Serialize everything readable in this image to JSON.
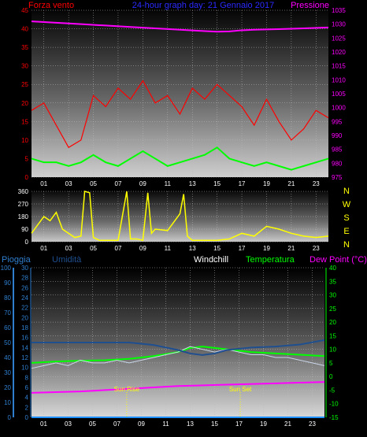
{
  "header": {
    "left": "Forza vento",
    "center": "24-hour graph day: 21 Gennaio 2017",
    "right": "Pressione"
  },
  "colors": {
    "wind": "#ff0000",
    "pressure": "#ff00ff",
    "wind_low": "#00ff00",
    "direction": "#ffff00",
    "humidity_axis": "#2f7fcf",
    "windchill": "#ffffff",
    "temperature": "#00ff00",
    "dew_point": "#ff00ff",
    "rain": "#1e90ff",
    "humidity_line": "#1f4f8f"
  },
  "chart_data": [
    {
      "type": "line",
      "panel": "wind-pressure",
      "x_ticks": [
        "01",
        "03",
        "05",
        "07",
        "09",
        "11",
        "13",
        "15",
        "17",
        "19",
        "21",
        "23"
      ],
      "left_axis": {
        "label": "Forza vento",
        "ticks": [
          0,
          5,
          10,
          15,
          20,
          25,
          30,
          35,
          40,
          45
        ],
        "range": [
          0,
          45
        ]
      },
      "right_axis": {
        "label": "Pressione",
        "ticks": [
          975,
          980,
          985,
          990,
          995,
          1000,
          1005,
          1010,
          1015,
          1020,
          1025,
          1030,
          1035
        ],
        "range": [
          975,
          1035
        ]
      },
      "grid": true,
      "series": [
        {
          "name": "Pressione",
          "axis": "right",
          "x": [
            0,
            2,
            4,
            6,
            8,
            10,
            12,
            14,
            15,
            16,
            17,
            18,
            20,
            22,
            24
          ],
          "y": [
            1031,
            1030.5,
            1030,
            1029.5,
            1029,
            1028.5,
            1028,
            1027.5,
            1027.3,
            1027.4,
            1027.8,
            1028,
            1028.2,
            1028.5,
            1028.8
          ]
        },
        {
          "axis": "left",
          "x": [
            0,
            1,
            2,
            3,
            4,
            5,
            6,
            7,
            8,
            9,
            10,
            11,
            12,
            13,
            14,
            15,
            16,
            17,
            18,
            19,
            20,
            21,
            22,
            23,
            24
          ],
          "y": [
            18,
            20,
            14,
            8,
            10,
            22,
            19,
            24,
            21,
            26,
            20,
            22,
            17,
            24,
            21,
            25,
            22,
            19,
            14,
            21,
            15,
            10,
            13,
            18,
            16
          ]
        },
        {
          "axis": "left",
          "x": [
            0,
            1,
            2,
            3,
            4,
            5,
            6,
            7,
            8,
            9,
            10,
            11,
            12,
            13,
            14,
            15,
            16,
            17,
            18,
            19,
            20,
            21,
            22,
            23,
            24
          ],
          "y": [
            5,
            4,
            4,
            3,
            4,
            6,
            4,
            3,
            5,
            7,
            5,
            3,
            4,
            5,
            6,
            8,
            5,
            4,
            3,
            4,
            3,
            2,
            3,
            4,
            5
          ]
        }
      ]
    },
    {
      "type": "line",
      "panel": "wind-direction",
      "x_ticks": [
        "01",
        "03",
        "05",
        "07",
        "09",
        "11",
        "13",
        "15",
        "17",
        "19",
        "21",
        "23"
      ],
      "left_axis": {
        "ticks": [
          0,
          90,
          180,
          270,
          360
        ],
        "range": [
          0,
          360
        ]
      },
      "right_axis": {
        "ticks": [
          "N",
          "W",
          "S",
          "E",
          "N"
        ]
      },
      "grid": true,
      "series": [
        {
          "axis": "left",
          "x": [
            0,
            0.5,
            1,
            1.5,
            2,
            2.5,
            3,
            3.5,
            4,
            4.3,
            4.7,
            5,
            5.5,
            6,
            7,
            7.7,
            8,
            8.5,
            9,
            9.4,
            9.7,
            10,
            11,
            12,
            12.3,
            12.6,
            13,
            14,
            15,
            16,
            17,
            18,
            19,
            20,
            21,
            22,
            23,
            24
          ],
          "y": [
            60,
            120,
            180,
            150,
            210,
            90,
            60,
            30,
            40,
            360,
            350,
            30,
            10,
            10,
            10,
            360,
            20,
            20,
            10,
            350,
            60,
            90,
            80,
            200,
            340,
            40,
            10,
            10,
            10,
            20,
            60,
            40,
            110,
            90,
            60,
            40,
            30,
            40
          ]
        }
      ]
    },
    {
      "type": "line",
      "panel": "rain-humidity-temperature",
      "x_ticks": [
        "01",
        "03",
        "05",
        "07",
        "09",
        "11",
        "13",
        "15",
        "17",
        "19",
        "21",
        "23"
      ],
      "axes": [
        {
          "label": "Pioggia",
          "ticks": [
            0,
            10,
            20,
            30,
            40,
            50,
            60,
            70,
            80,
            90,
            100
          ],
          "range": [
            0,
            100
          ]
        },
        {
          "label": "Umidità",
          "ticks": [
            0,
            2,
            4,
            6,
            8,
            10,
            12,
            14,
            16,
            18,
            20,
            22,
            24,
            26,
            28,
            30
          ],
          "range": [
            0,
            30
          ]
        },
        {
          "label": "Temperatura",
          "ticks": [
            -15,
            -10,
            -5,
            0,
            5,
            10,
            15,
            20,
            25,
            30,
            35,
            40
          ],
          "range": [
            -15,
            40
          ]
        }
      ],
      "legend": [
        "Pioggia",
        "Umidità",
        "Windchill",
        "Temperatura",
        "Dew Point (°C)"
      ],
      "annotations": [
        {
          "text": "Sun Rise",
          "x": 7.8
        },
        {
          "text": "Sun Set",
          "x": 17.1
        }
      ],
      "grid": true,
      "series": [
        {
          "name": "Temperatura",
          "x": [
            0,
            2,
            4,
            6,
            8,
            10,
            12,
            13,
            14,
            15,
            16,
            17,
            18,
            20,
            22,
            24
          ],
          "y": [
            5,
            5.5,
            5.8,
            6,
            6.5,
            7.5,
            9,
            10.5,
            11,
            10.5,
            10,
            9.5,
            9,
            8.5,
            8,
            7.5
          ]
        },
        {
          "name": "Windchill",
          "x": [
            0,
            1,
            2,
            3,
            4,
            5,
            6,
            7,
            8,
            9,
            10,
            11,
            12,
            13,
            14,
            15,
            16,
            17,
            18,
            19,
            20,
            21,
            22,
            23,
            24
          ],
          "y": [
            3,
            4,
            5,
            4,
            6,
            5,
            5,
            6,
            5,
            6,
            7,
            8,
            9,
            11,
            10,
            9,
            10,
            9,
            8,
            8,
            7,
            7,
            6,
            5,
            4
          ]
        },
        {
          "name": "Dew Point (°C)",
          "x": [
            0,
            4,
            8,
            12,
            16,
            20,
            24
          ],
          "y": [
            -6,
            -5.5,
            -4.5,
            -3.5,
            -3,
            -2.5,
            -2
          ]
        },
        {
          "name": "Umidità",
          "x": [
            0,
            4,
            8,
            10,
            12,
            13,
            14,
            15,
            16,
            18,
            20,
            22,
            24
          ],
          "y": [
            15,
            15,
            15,
            14.5,
            13.5,
            12.8,
            12.5,
            12.8,
            13.5,
            14,
            14.2,
            14.6,
            15.5
          ]
        },
        {
          "name": "Pioggia",
          "x": [
            0,
            24
          ],
          "y": [
            0,
            0
          ]
        }
      ]
    }
  ]
}
